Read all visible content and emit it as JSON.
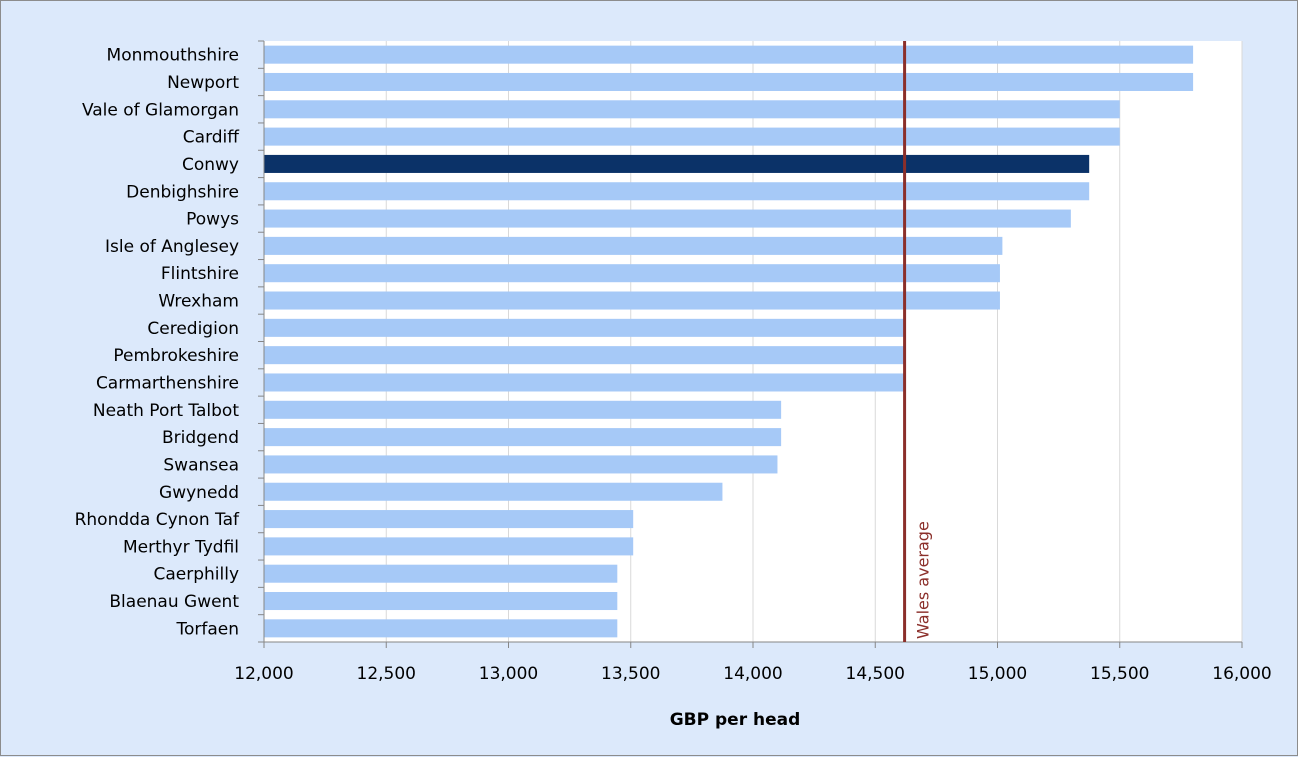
{
  "chart_data": {
    "type": "bar",
    "orientation": "horizontal",
    "categories": [
      "Monmouthshire",
      "Newport",
      "Vale of Glamorgan",
      "Cardiff",
      "Conwy",
      "Denbighshire",
      "Powys",
      "Isle of Anglesey",
      "Flintshire",
      "Wrexham",
      "Ceredigion",
      "Pembrokeshire",
      "Carmarthenshire",
      "Neath Port Talbot",
      "Bridgend",
      "Swansea",
      "Gwynedd",
      "Rhondda Cynon Taf",
      "Merthyr Tydfil",
      "Caerphilly",
      "Blaenau Gwent",
      "Torfaen"
    ],
    "values": [
      15800,
      15800,
      15500,
      15500,
      15375,
      15375,
      15300,
      15020,
      15010,
      15010,
      14620,
      14620,
      14620,
      14115,
      14115,
      14100,
      13875,
      13510,
      13510,
      13445,
      13445,
      13445
    ],
    "highlight_category": "Conwy",
    "reference_line": {
      "value": 14620,
      "label": "Wales average"
    },
    "title": "",
    "xlabel": "GBP per head",
    "ylabel": "",
    "xlim": [
      12000,
      16000
    ],
    "xticks": [
      12000,
      12500,
      13000,
      13500,
      14000,
      14500,
      15000,
      15500,
      16000
    ],
    "xtick_labels": [
      "12,000",
      "12,500",
      "13,000",
      "13,500",
      "14,000",
      "14,500",
      "15,000",
      "15,500",
      "16,000"
    ],
    "grid": "vertical",
    "legend": "none",
    "colors": {
      "bar": "#a6c9f7",
      "highlight_bar": "#0b3268",
      "reference_line": "#8b2f2a",
      "plot_background": "#ffffff",
      "chart_background": "#dce9fb",
      "grid": "#d9d9d9"
    }
  }
}
